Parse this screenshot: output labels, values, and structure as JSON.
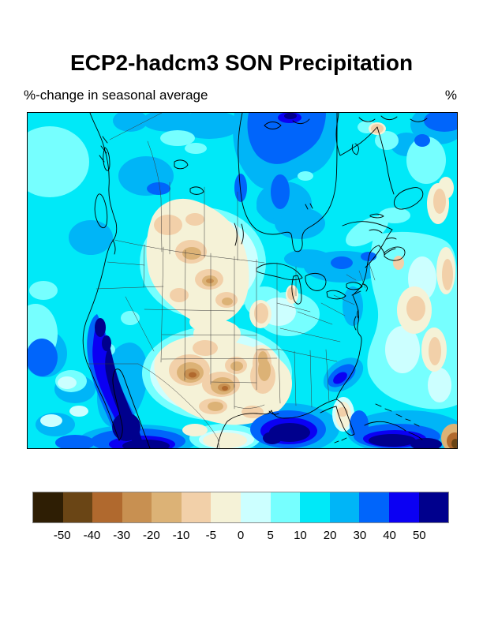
{
  "figure": {
    "title": "ECP2-hadcm3 SON Precipitation",
    "subtitle": "%-change in seasonal average",
    "unit_label": "%"
  },
  "colorbar": {
    "labels": [
      "-50",
      "-40",
      "-30",
      "-20",
      "-10",
      "-5",
      "0",
      "5",
      "10",
      "20",
      "30",
      "40",
      "50"
    ],
    "levels": [
      -50,
      -40,
      -30,
      -20,
      -10,
      -5,
      0,
      5,
      10,
      20,
      30,
      40,
      50
    ],
    "colors": [
      "#2E1E04",
      "#6A4515",
      "#B0692E",
      "#C89051",
      "#DCB276",
      "#F2D0A9",
      "#F5F2D7",
      "#CCFFFF",
      "#76FFFF",
      "#00E9F8",
      "#00B5F7",
      "#0065FB",
      "#0B00F3",
      "#00008D"
    ],
    "border_color": "#8a8a8a"
  },
  "map": {
    "region": "North America",
    "kind": "filled contour map of percent change in seasonal (SON) average precipitation",
    "coastline_color": "#000000",
    "border_line_color": "#3a3a3a"
  }
}
